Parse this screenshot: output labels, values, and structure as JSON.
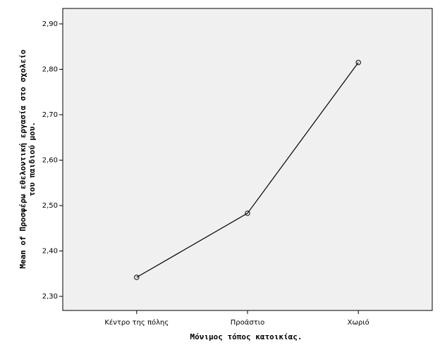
{
  "chart_data": {
    "type": "line",
    "ylabel": [
      "Mean of Προσφέρω εθελοντική εργασία στο σχολείο",
      "του παιδιού μου."
    ],
    "xlabel": "Μόνιμος τόπος κατοικίας.",
    "categories": [
      "Κέντρο της πόλης",
      "Προάστιο",
      "Χωριό"
    ],
    "values": [
      2.342,
      2.483,
      2.815
    ],
    "color": "#000000",
    "ylim": [
      2.269,
      2.934
    ],
    "yticks": [
      {
        "value": 2.3,
        "label": "2,30"
      },
      {
        "value": 2.4,
        "label": "2,40"
      },
      {
        "value": 2.5,
        "label": "2,50"
      },
      {
        "value": 2.6,
        "label": "2,60"
      },
      {
        "value": 2.7,
        "label": "2,70"
      },
      {
        "value": 2.8,
        "label": "2,80"
      },
      {
        "value": 2.9,
        "label": "2,90"
      }
    ]
  }
}
